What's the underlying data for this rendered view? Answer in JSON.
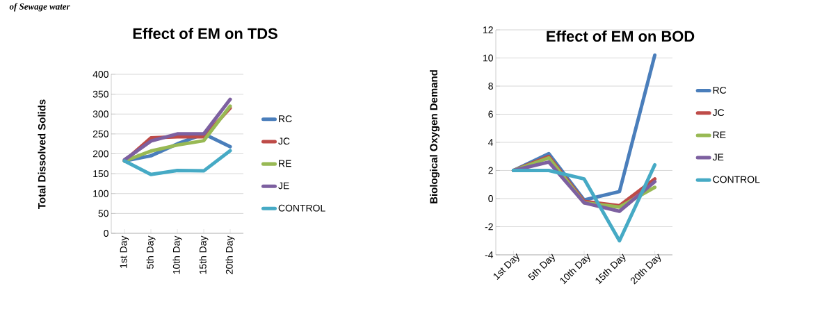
{
  "chart_data": [
    {
      "type": "line",
      "title": "Effect of EM on TDS",
      "ylabel": "Total Dissolved Solids",
      "annotations": [
        "of Sewage water"
      ],
      "categories": [
        "1st Day",
        "5th Day",
        "10th Day",
        "15th Day",
        "20th Day"
      ],
      "series": [
        {
          "name": "RC",
          "color": "#4a7ebb",
          "values": [
            182,
            195,
            225,
            250,
            218
          ]
        },
        {
          "name": "JC",
          "color": "#be4b48",
          "values": [
            182,
            240,
            243,
            243,
            315
          ]
        },
        {
          "name": "RE",
          "color": "#98b954",
          "values": [
            182,
            207,
            222,
            233,
            320
          ]
        },
        {
          "name": "JE",
          "color": "#7d60a0",
          "values": [
            185,
            232,
            250,
            250,
            337
          ]
        },
        {
          "name": "CONTROL",
          "color": "#46aac5",
          "values": [
            182,
            148,
            158,
            157,
            208
          ]
        }
      ],
      "ylim": [
        0,
        400
      ],
      "yticks": [
        0,
        50,
        100,
        150,
        200,
        250,
        300,
        350,
        400
      ],
      "grid": "y",
      "legend": "right",
      "marker": "none"
    },
    {
      "type": "line",
      "title": "Effect of EM on BOD",
      "ylabel": "Biological Oxygen Demand",
      "categories": [
        "1st Day",
        "5th Day",
        "10th Day",
        "15th Day",
        "20th Day"
      ],
      "series": [
        {
          "name": "RC",
          "color": "#4a7ebb",
          "values": [
            2,
            3.2,
            -0.1,
            0.5,
            10.2
          ]
        },
        {
          "name": "JC",
          "color": "#be4b48",
          "values": [
            2,
            3.0,
            -0.2,
            -0.5,
            1.4
          ]
        },
        {
          "name": "RE",
          "color": "#98b954",
          "values": [
            2,
            2.9,
            -0.3,
            -0.6,
            0.8
          ]
        },
        {
          "name": "JE",
          "color": "#7d60a0",
          "values": [
            2,
            2.6,
            -0.3,
            -0.9,
            1.2
          ]
        },
        {
          "name": "CONTROL",
          "color": "#46aac5",
          "values": [
            2,
            2,
            1.4,
            -3,
            2.4
          ]
        }
      ],
      "ylim": [
        -4,
        12
      ],
      "yticks": [
        -4,
        -2,
        0,
        2,
        4,
        6,
        8,
        10,
        12
      ],
      "grid": "y",
      "legend": "right",
      "marker": "none"
    }
  ]
}
